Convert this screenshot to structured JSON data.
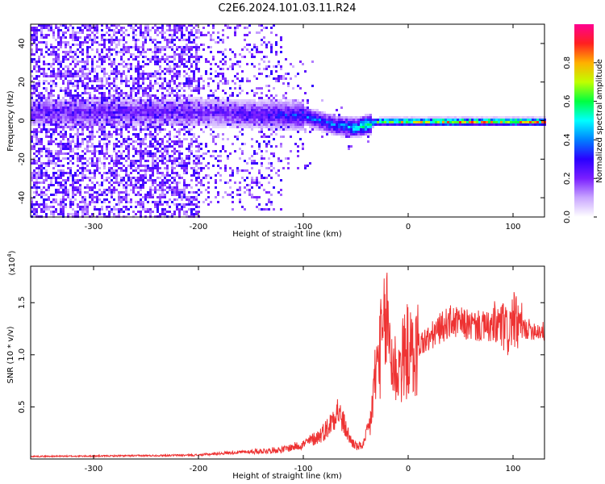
{
  "title": "C2E6.2024.101.03.11.R24",
  "chart_data": [
    {
      "type": "heatmap",
      "xlabel": "Height of straight line (km)",
      "ylabel": "Frequency (Hz)",
      "xlim": [
        -360,
        130
      ],
      "ylim": [
        -50,
        50
      ],
      "x_ticks": [
        -300,
        -200,
        -100,
        0,
        100
      ],
      "y_ticks": [
        -40,
        -20,
        0,
        20,
        40
      ],
      "colorbar": {
        "label": "Normalized spectral amplitude",
        "range": [
          0,
          1
        ],
        "ticks": [
          0.0,
          0.2,
          0.4,
          0.6,
          0.8
        ],
        "tick_labels": [
          "0.0",
          "0.2",
          "0.4",
          "0.6",
          "0.8"
        ],
        "colormap": [
          "#ffffff",
          "#c9a6ff",
          "#7a1fff",
          "#2a00ff",
          "#0080ff",
          "#00ffff",
          "#00ff40",
          "#c0ff00",
          "#ffb000",
          "#ff2020",
          "#ff0090"
        ]
      },
      "ridge": {
        "description_points": [
          {
            "x": -200,
            "freq": 5,
            "amp": 0.25
          },
          {
            "x": -150,
            "freq": 4,
            "amp": 0.3
          },
          {
            "x": -100,
            "freq": 3,
            "amp": 0.4
          },
          {
            "x": -70,
            "freq": -2,
            "amp": 0.45
          },
          {
            "x": -50,
            "freq": -3,
            "amp": 0.6
          },
          {
            "x": -30,
            "freq": 0,
            "amp": 0.75
          },
          {
            "x": 0,
            "freq": 0,
            "amp": 0.85
          },
          {
            "x": 50,
            "freq": 0,
            "amp": 0.9
          },
          {
            "x": 100,
            "freq": 0,
            "amp": 0.9
          },
          {
            "x": 130,
            "freq": 0,
            "amp": 0.9
          }
        ]
      },
      "grid": false
    },
    {
      "type": "line",
      "xlabel": "Height of straight line (km)",
      "ylabel": "SNR (10 * v/v)",
      "y_scale_label": "(x10",
      "y_scale_exp": "4",
      "y_scale_close": ")",
      "xlim": [
        -360,
        130
      ],
      "ylim": [
        0,
        18500
      ],
      "x_ticks": [
        -300,
        -200,
        -100,
        0,
        100
      ],
      "y_ticks": [
        5000,
        10000,
        15000
      ],
      "y_tick_labels": [
        "0.5",
        "1.0",
        "1.5"
      ],
      "series": [
        {
          "color": "#ee3333",
          "x": [
            -360,
            -300,
            -250,
            -200,
            -170,
            -150,
            -120,
            -100,
            -85,
            -75,
            -68,
            -62,
            -55,
            -48,
            -42,
            -36,
            -32,
            -28,
            -24,
            -20,
            -15,
            -10,
            -5,
            0,
            5,
            10,
            20,
            30,
            40,
            50,
            60,
            70,
            80,
            90,
            95,
            100,
            105,
            110,
            120,
            130
          ],
          "y": [
            250,
            280,
            320,
            380,
            600,
            700,
            900,
            1400,
            2200,
            3200,
            4800,
            3500,
            1800,
            1100,
            1500,
            3500,
            7500,
            10000,
            11500,
            13500,
            9000,
            8500,
            9500,
            10500,
            9500,
            11000,
            11500,
            12500,
            13200,
            13000,
            12800,
            12700,
            12600,
            12800,
            12000,
            13500,
            12700,
            12500,
            12400,
            12200
          ]
        }
      ],
      "grid": false
    }
  ]
}
